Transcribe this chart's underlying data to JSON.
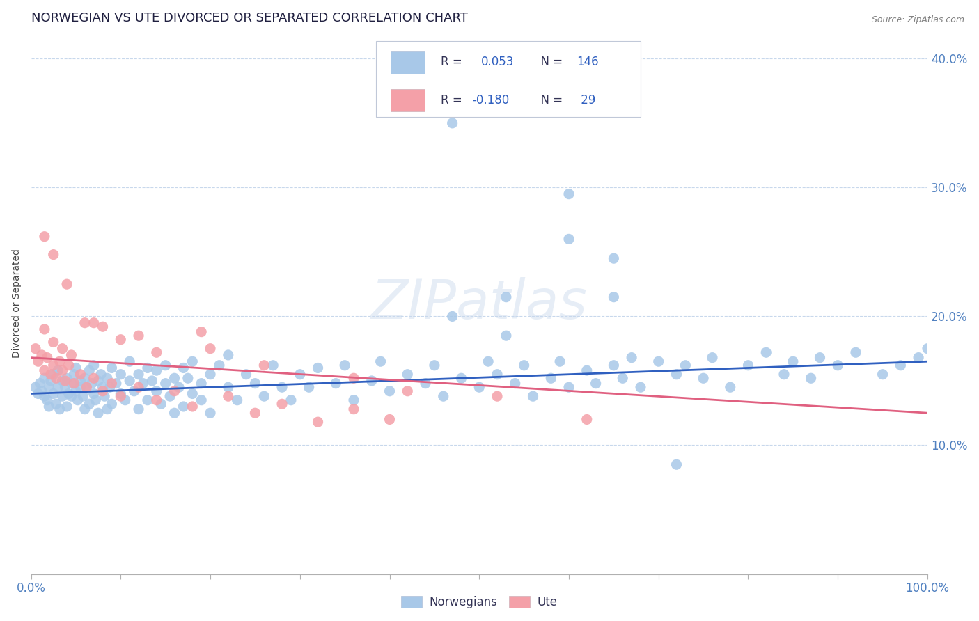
{
  "title": "NORWEGIAN VS UTE DIVORCED OR SEPARATED CORRELATION CHART",
  "source": "Source: ZipAtlas.com",
  "ylabel": "Divorced or Separated",
  "yticks": [
    0.0,
    0.1,
    0.2,
    0.3,
    0.4
  ],
  "ytick_labels": [
    "",
    "10.0%",
    "20.0%",
    "30.0%",
    "40.0%"
  ],
  "xlim": [
    0.0,
    1.0
  ],
  "ylim": [
    0.0,
    0.42
  ],
  "watermark": "ZIPatlas",
  "norwegian_color": "#a8c8e8",
  "ute_color": "#f4a0a8",
  "trendline_norwegian_color": "#3060c0",
  "trendline_ute_color": "#e06080",
  "background_color": "#ffffff",
  "grid_color": "#c8d8ec",
  "tick_color": "#5080c0",
  "legend_text_color": "#5080c0",
  "title_color": "#202040",
  "source_color": "#808080",
  "nor_x": [
    0.005,
    0.008,
    0.01,
    0.012,
    0.015,
    0.015,
    0.018,
    0.02,
    0.02,
    0.022,
    0.025,
    0.025,
    0.028,
    0.03,
    0.03,
    0.032,
    0.035,
    0.035,
    0.038,
    0.04,
    0.04,
    0.042,
    0.045,
    0.045,
    0.048,
    0.05,
    0.05,
    0.052,
    0.055,
    0.055,
    0.058,
    0.06,
    0.06,
    0.062,
    0.065,
    0.065,
    0.068,
    0.07,
    0.07,
    0.072,
    0.075,
    0.075,
    0.078,
    0.08,
    0.082,
    0.085,
    0.085,
    0.088,
    0.09,
    0.09,
    0.095,
    0.1,
    0.1,
    0.105,
    0.11,
    0.11,
    0.115,
    0.12,
    0.12,
    0.125,
    0.13,
    0.13,
    0.135,
    0.14,
    0.14,
    0.145,
    0.15,
    0.15,
    0.155,
    0.16,
    0.16,
    0.165,
    0.17,
    0.17,
    0.175,
    0.18,
    0.18,
    0.19,
    0.19,
    0.2,
    0.2,
    0.21,
    0.22,
    0.22,
    0.23,
    0.24,
    0.25,
    0.26,
    0.27,
    0.28,
    0.29,
    0.3,
    0.31,
    0.32,
    0.34,
    0.35,
    0.36,
    0.38,
    0.39,
    0.4,
    0.42,
    0.44,
    0.45,
    0.46,
    0.48,
    0.5,
    0.51,
    0.52,
    0.54,
    0.55,
    0.56,
    0.58,
    0.59,
    0.6,
    0.62,
    0.63,
    0.65,
    0.66,
    0.67,
    0.68,
    0.7,
    0.72,
    0.73,
    0.75,
    0.76,
    0.78,
    0.8,
    0.82,
    0.84,
    0.85,
    0.87,
    0.88,
    0.9,
    0.92,
    0.95,
    0.97,
    0.99,
    1.0,
    0.47,
    0.47,
    0.53,
    0.53,
    0.6,
    0.6,
    0.65,
    0.65,
    0.72
  ],
  "nor_y": [
    0.145,
    0.14,
    0.148,
    0.142,
    0.138,
    0.152,
    0.135,
    0.145,
    0.13,
    0.15,
    0.14,
    0.155,
    0.132,
    0.145,
    0.158,
    0.128,
    0.15,
    0.138,
    0.145,
    0.152,
    0.13,
    0.14,
    0.148,
    0.138,
    0.155,
    0.142,
    0.16,
    0.135,
    0.15,
    0.145,
    0.138,
    0.152,
    0.128,
    0.145,
    0.158,
    0.132,
    0.148,
    0.14,
    0.162,
    0.135,
    0.15,
    0.125,
    0.155,
    0.145,
    0.138,
    0.152,
    0.128,
    0.145,
    0.16,
    0.132,
    0.148,
    0.14,
    0.155,
    0.135,
    0.15,
    0.165,
    0.142,
    0.155,
    0.128,
    0.148,
    0.16,
    0.135,
    0.15,
    0.142,
    0.158,
    0.132,
    0.148,
    0.162,
    0.138,
    0.152,
    0.125,
    0.145,
    0.16,
    0.13,
    0.152,
    0.14,
    0.165,
    0.148,
    0.135,
    0.155,
    0.125,
    0.162,
    0.145,
    0.17,
    0.135,
    0.155,
    0.148,
    0.138,
    0.162,
    0.145,
    0.135,
    0.155,
    0.145,
    0.16,
    0.148,
    0.162,
    0.135,
    0.15,
    0.165,
    0.142,
    0.155,
    0.148,
    0.162,
    0.138,
    0.152,
    0.145,
    0.165,
    0.155,
    0.148,
    0.162,
    0.138,
    0.152,
    0.165,
    0.145,
    0.158,
    0.148,
    0.162,
    0.152,
    0.168,
    0.145,
    0.165,
    0.155,
    0.162,
    0.152,
    0.168,
    0.145,
    0.162,
    0.172,
    0.155,
    0.165,
    0.152,
    0.168,
    0.162,
    0.172,
    0.155,
    0.162,
    0.168,
    0.175,
    0.35,
    0.2,
    0.215,
    0.185,
    0.295,
    0.26,
    0.215,
    0.245,
    0.085
  ],
  "ute_x": [
    0.005,
    0.008,
    0.012,
    0.015,
    0.018,
    0.022,
    0.025,
    0.028,
    0.032,
    0.035,
    0.038,
    0.042,
    0.048,
    0.055,
    0.062,
    0.07,
    0.08,
    0.09,
    0.1,
    0.12,
    0.14,
    0.16,
    0.18,
    0.22,
    0.25,
    0.28,
    0.32,
    0.36,
    0.4,
    0.015,
    0.025,
    0.035,
    0.045,
    0.06,
    0.08,
    0.1,
    0.14,
    0.19,
    0.26,
    0.36,
    0.42,
    0.52,
    0.62,
    0.015,
    0.025,
    0.04,
    0.07,
    0.12,
    0.2
  ],
  "ute_y": [
    0.175,
    0.165,
    0.17,
    0.158,
    0.168,
    0.155,
    0.162,
    0.152,
    0.165,
    0.158,
    0.15,
    0.162,
    0.148,
    0.155,
    0.145,
    0.152,
    0.142,
    0.148,
    0.138,
    0.145,
    0.135,
    0.142,
    0.13,
    0.138,
    0.125,
    0.132,
    0.118,
    0.128,
    0.12,
    0.19,
    0.18,
    0.175,
    0.17,
    0.195,
    0.192,
    0.182,
    0.172,
    0.188,
    0.162,
    0.152,
    0.142,
    0.138,
    0.12,
    0.262,
    0.248,
    0.225,
    0.195,
    0.185,
    0.175
  ]
}
